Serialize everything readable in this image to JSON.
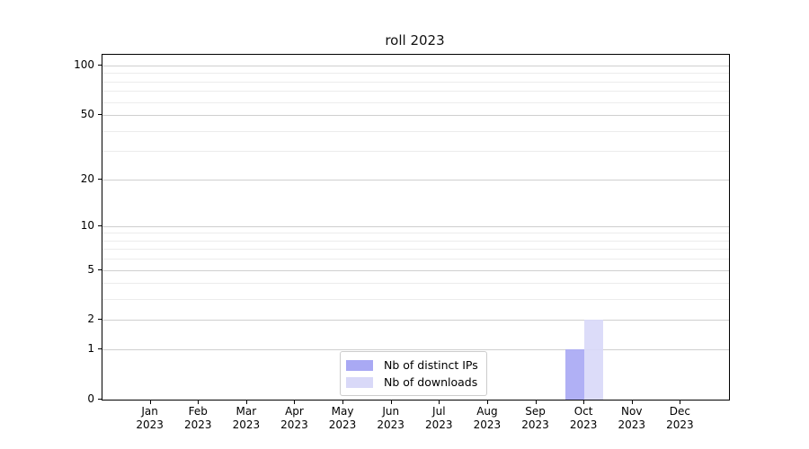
{
  "chart_data": {
    "type": "bar",
    "title": "roll 2023",
    "xlabel": "",
    "ylabel": "",
    "yscale": "log1p",
    "grid": "on",
    "legend_position": "bottom-center",
    "categories": [
      "Jan 2023",
      "Feb 2023",
      "Mar 2023",
      "Apr 2023",
      "May 2023",
      "Jun 2023",
      "Jul 2023",
      "Aug 2023",
      "Sep 2023",
      "Oct 2023",
      "Nov 2023",
      "Dec 2023"
    ],
    "series": [
      {
        "name": "Nb of distinct IPs",
        "color": "#a9a9f4",
        "values": [
          0,
          0,
          0,
          0,
          0,
          0,
          0,
          0,
          0,
          1,
          0,
          0
        ]
      },
      {
        "name": "Nb of downloads",
        "color": "#d9d9f8",
        "values": [
          0,
          0,
          0,
          0,
          0,
          0,
          0,
          0,
          0,
          2,
          0,
          0
        ]
      }
    ],
    "yticks": [
      0,
      1,
      2,
      5,
      10,
      20,
      50,
      100
    ],
    "yticks_minor": [
      3,
      4,
      6,
      7,
      8,
      9,
      30,
      40,
      60,
      70,
      80,
      90
    ],
    "ylim": [
      0,
      116
    ]
  },
  "colors": {
    "bar_distinct_ips": "#a9a9f4",
    "bar_downloads": "#d9d9f8",
    "major_grid": "#cfcfcf",
    "minor_grid": "#ececec",
    "spine": "#000000",
    "legend_border": "#cccccc",
    "text": "#000000"
  }
}
